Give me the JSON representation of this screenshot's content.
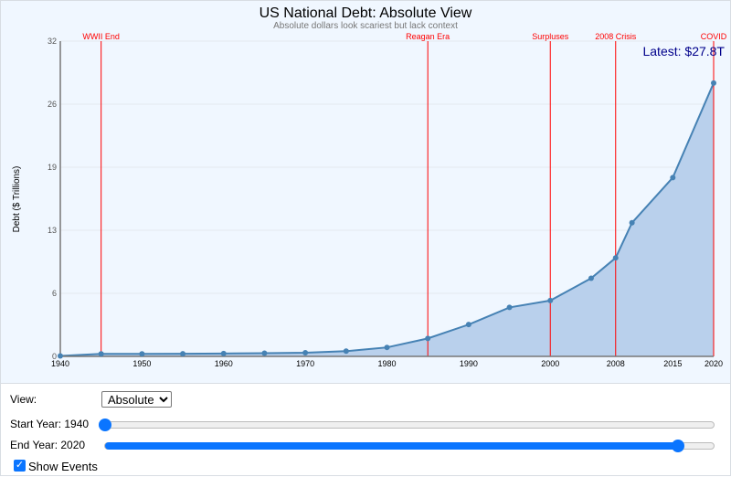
{
  "chart_data": {
    "type": "area",
    "title": "US National Debt: Absolute View",
    "subtitle": "Absolute dollars look scariest but lack context",
    "ylabel": "Debt ($ Trillions)",
    "xlabel": "",
    "xlim": [
      1940,
      2020
    ],
    "ylim": [
      0,
      32
    ],
    "x_ticks": [
      "1940",
      "1950",
      "1960",
      "1970",
      "1980",
      "1990",
      "2000",
      "2008",
      "2015",
      "2020"
    ],
    "y_ticks": [
      "0",
      "6",
      "13",
      "19",
      "26",
      "32"
    ],
    "grid": "horizontal",
    "x": [
      1940,
      1945,
      1950,
      1955,
      1960,
      1965,
      1970,
      1975,
      1980,
      1985,
      1990,
      1995,
      2000,
      2005,
      2008,
      2010,
      2015,
      2020
    ],
    "values": [
      0.05,
      0.26,
      0.26,
      0.27,
      0.29,
      0.32,
      0.37,
      0.53,
      0.91,
      1.82,
      3.23,
      4.97,
      5.67,
      7.93,
      10.0,
      13.56,
      18.15,
      27.75
    ],
    "events": [
      {
        "year": 1945,
        "label": "WWII End"
      },
      {
        "year": 1985,
        "label": "Reagan Era"
      },
      {
        "year": 2000,
        "label": "Surpluses"
      },
      {
        "year": 2008,
        "label": "2008 Crisis"
      },
      {
        "year": 2020,
        "label": "COVID"
      }
    ],
    "annotation": "Latest: $27.8T",
    "colors": {
      "line": "#4682b4",
      "fill": "#b9d0ec",
      "event": "#ff0000",
      "annotation": "#00008b"
    }
  },
  "controls": {
    "view_label": "View:",
    "view_value": "Absolute",
    "start_label": "Start Year: 1940",
    "end_label": "End Year: 2020",
    "slider_min": 1940,
    "slider_max": 2025,
    "start_year": 1940,
    "end_year": 2020,
    "show_events_label": "Show Events",
    "show_events": true
  }
}
